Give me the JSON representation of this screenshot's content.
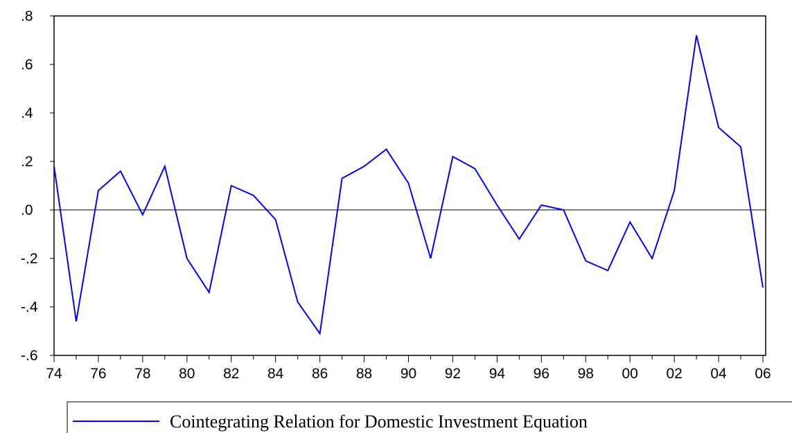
{
  "chart_data": {
    "type": "line",
    "categories": [
      "74",
      null,
      "76",
      null,
      "78",
      null,
      "80",
      null,
      "82",
      null,
      "84",
      null,
      "86",
      null,
      "88",
      null,
      "90",
      null,
      "92",
      null,
      "94",
      null,
      "96",
      null,
      "98",
      null,
      "00",
      null,
      "02",
      null,
      "04",
      null,
      "06"
    ],
    "series": [
      {
        "name": "Cointegrating Relation for Domestic Investment Equation",
        "color": "#0000ff",
        "values": [
          0.18,
          -0.46,
          0.08,
          0.16,
          -0.02,
          0.18,
          -0.2,
          -0.34,
          0.1,
          0.06,
          -0.04,
          -0.38,
          -0.51,
          0.13,
          0.18,
          0.25,
          0.11,
          -0.2,
          0.22,
          0.17,
          0.02,
          -0.12,
          0.02,
          0.0,
          -0.21,
          -0.25,
          -0.05,
          -0.2,
          0.08,
          0.72,
          0.34,
          0.26,
          -0.32
        ]
      }
    ],
    "ylim": [
      -0.6,
      0.8
    ],
    "yticks": [
      {
        "value": -0.6,
        "label": "-.6"
      },
      {
        "value": -0.4,
        "label": "-.4"
      },
      {
        "value": -0.2,
        "label": "-.2"
      },
      {
        "value": 0,
        "label": ".0"
      },
      {
        "value": 0.2,
        "label": ".2"
      },
      {
        "value": 0.4,
        "label": ".4"
      },
      {
        "value": 0.6,
        "label": ".6"
      },
      {
        "value": 0.8,
        "label": ".8"
      }
    ],
    "zero_line": true
  }
}
